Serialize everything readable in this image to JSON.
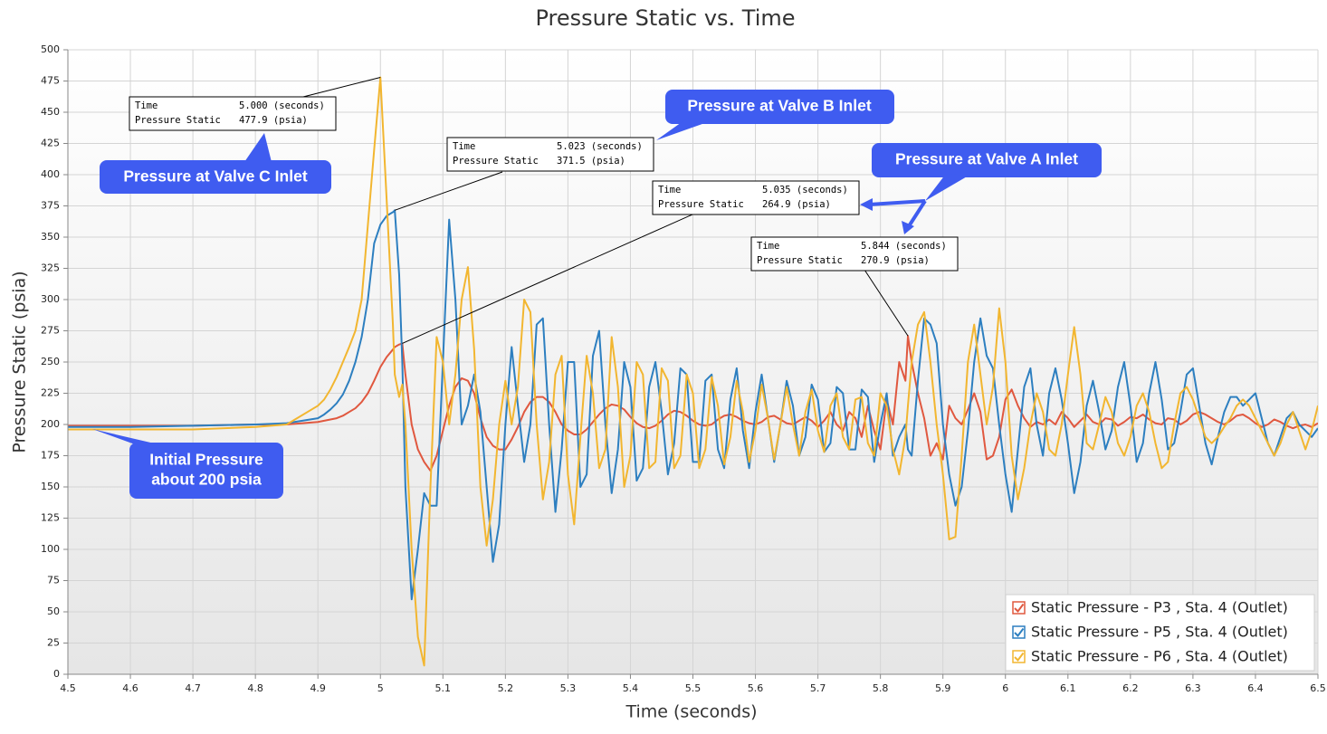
{
  "chart_data": {
    "type": "line",
    "title": "Pressure Static vs. Time",
    "x_label": "Time (seconds)",
    "y_label": "Pressure Static (psia)",
    "xlim": [
      4.5,
      6.5
    ],
    "ylim": [
      0,
      500
    ],
    "xticks": [
      4.5,
      4.6,
      4.7,
      4.8,
      4.9,
      5,
      5.1,
      5.2,
      5.3,
      5.4,
      5.5,
      5.6,
      5.7,
      5.8,
      5.9,
      6,
      6.1,
      6.2,
      6.3,
      6.4,
      6.5
    ],
    "yticks": [
      0,
      25,
      50,
      75,
      100,
      125,
      150,
      175,
      200,
      225,
      250,
      275,
      300,
      325,
      350,
      375,
      400,
      425,
      450,
      475,
      500
    ],
    "grid": true,
    "legend": "lower right",
    "x": [
      4.5,
      4.6,
      4.7,
      4.8,
      4.85,
      4.9,
      4.91,
      4.92,
      4.93,
      4.94,
      4.95,
      4.96,
      4.97,
      4.98,
      4.99,
      5,
      5.01,
      5.02,
      5.023,
      5.03,
      5.035,
      5.04,
      5.05,
      5.06,
      5.07,
      5.08,
      5.09,
      5.1,
      5.11,
      5.12,
      5.13,
      5.14,
      5.15,
      5.16,
      5.17,
      5.18,
      5.19,
      5.2,
      5.21,
      5.22,
      5.23,
      5.24,
      5.25,
      5.26,
      5.27,
      5.28,
      5.29,
      5.3,
      5.31,
      5.32,
      5.33,
      5.34,
      5.35,
      5.36,
      5.37,
      5.38,
      5.39,
      5.4,
      5.41,
      5.42,
      5.43,
      5.44,
      5.45,
      5.46,
      5.47,
      5.48,
      5.49,
      5.5,
      5.51,
      5.52,
      5.53,
      5.54,
      5.55,
      5.56,
      5.57,
      5.58,
      5.59,
      5.6,
      5.61,
      5.62,
      5.63,
      5.64,
      5.65,
      5.66,
      5.67,
      5.68,
      5.69,
      5.7,
      5.71,
      5.72,
      5.73,
      5.74,
      5.75,
      5.76,
      5.77,
      5.78,
      5.79,
      5.8,
      5.81,
      5.82,
      5.83,
      5.84,
      5.844,
      5.85,
      5.86,
      5.87,
      5.88,
      5.89,
      5.9,
      5.91,
      5.92,
      5.93,
      5.94,
      5.95,
      5.96,
      5.97,
      5.98,
      5.99,
      6,
      6.01,
      6.02,
      6.03,
      6.04,
      6.05,
      6.06,
      6.07,
      6.08,
      6.09,
      6.1,
      6.11,
      6.12,
      6.13,
      6.14,
      6.15,
      6.16,
      6.17,
      6.18,
      6.19,
      6.2,
      6.21,
      6.22,
      6.23,
      6.24,
      6.25,
      6.26,
      6.27,
      6.28,
      6.29,
      6.3,
      6.31,
      6.32,
      6.33,
      6.34,
      6.35,
      6.36,
      6.37,
      6.38,
      6.39,
      6.4,
      6.41,
      6.42,
      6.43,
      6.44,
      6.45,
      6.46,
      6.47,
      6.48,
      6.49,
      6.5
    ],
    "series": [
      {
        "name": "Static Pressure - P3 , Sta. 4 (Outlet)",
        "color": "#e0583f",
        "values": [
          199,
          199,
          199,
          200,
          200,
          202,
          203,
          204,
          205,
          207,
          210,
          213,
          218,
          225,
          235,
          246,
          254,
          260,
          262,
          264,
          264.9,
          240,
          200,
          180,
          170,
          163,
          175,
          195,
          215,
          230,
          237,
          235,
          225,
          205,
          190,
          183,
          180,
          180,
          188,
          198,
          210,
          218,
          222,
          222,
          218,
          210,
          200,
          195,
          192,
          192,
          196,
          202,
          208,
          213,
          216,
          215,
          212,
          206,
          201,
          198,
          197,
          199,
          203,
          208,
          211,
          210,
          207,
          203,
          200,
          199,
          200,
          204,
          207,
          208,
          206,
          203,
          201,
          200,
          202,
          206,
          207,
          204,
          201,
          200,
          203,
          206,
          203,
          198,
          203,
          210,
          200,
          195,
          210,
          205,
          190,
          215,
          195,
          180,
          220,
          200,
          250,
          235,
          270.9,
          250,
          225,
          205,
          175,
          185,
          172,
          215,
          205,
          200,
          212,
          225,
          210,
          172,
          175,
          190,
          220,
          228,
          215,
          205,
          198,
          202,
          200,
          204,
          200,
          210,
          205,
          198,
          203,
          208,
          202,
          200,
          205,
          204,
          199,
          202,
          206,
          205,
          208,
          204,
          201,
          200,
          205,
          204,
          200,
          203,
          208,
          210,
          208,
          205,
          202,
          200,
          203,
          207,
          208,
          205,
          201,
          198,
          200,
          204,
          202,
          199,
          197,
          199,
          200,
          198,
          201
        ]
      },
      {
        "name": "Static Pressure - P5 , Sta. 4 (Outlet)",
        "color": "#2d7fc0",
        "values": [
          198,
          198,
          199,
          200,
          201,
          205,
          208,
          212,
          217,
          224,
          235,
          250,
          270,
          300,
          345,
          360,
          367,
          370,
          371.5,
          320,
          250,
          150,
          60,
          100,
          145,
          135,
          135,
          250,
          364,
          300,
          200,
          215,
          240,
          210,
          150,
          90,
          120,
          200,
          262,
          215,
          170,
          200,
          280,
          285,
          200,
          130,
          180,
          250,
          250,
          150,
          160,
          255,
          275,
          200,
          145,
          180,
          250,
          230,
          155,
          165,
          230,
          250,
          210,
          160,
          185,
          245,
          240,
          170,
          170,
          235,
          240,
          180,
          165,
          220,
          245,
          195,
          165,
          210,
          240,
          205,
          170,
          200,
          235,
          215,
          175,
          190,
          232,
          220,
          178,
          185,
          230,
          225,
          180,
          180,
          228,
          222,
          170,
          200,
          225,
          175,
          190,
          200,
          180,
          175,
          235,
          285,
          280,
          265,
          200,
          160,
          135,
          150,
          195,
          250,
          285,
          255,
          245,
          200,
          160,
          130,
          180,
          230,
          245,
          200,
          175,
          225,
          245,
          220,
          185,
          145,
          170,
          215,
          235,
          210,
          180,
          195,
          230,
          250,
          215,
          170,
          185,
          225,
          250,
          220,
          180,
          185,
          210,
          240,
          245,
          215,
          185,
          168,
          190,
          210,
          222,
          222,
          215,
          220,
          225,
          205,
          185,
          175,
          190,
          205,
          210,
          200,
          195,
          190,
          197
        ]
      },
      {
        "name": "Static Pressure - P6 , Sta. 4 (Outlet)",
        "color": "#f2b630",
        "values": [
          196,
          196,
          196,
          198,
          200,
          215,
          220,
          228,
          238,
          250,
          262,
          275,
          300,
          360,
          420,
          477.9,
          380,
          280,
          240,
          222,
          232,
          200,
          100,
          30,
          7,
          150,
          270,
          250,
          200,
          240,
          300,
          326,
          260,
          150,
          103,
          140,
          200,
          235,
          200,
          230,
          300,
          290,
          200,
          140,
          170,
          240,
          255,
          160,
          120,
          190,
          255,
          225,
          165,
          180,
          270,
          230,
          150,
          175,
          250,
          240,
          165,
          170,
          245,
          235,
          165,
          175,
          240,
          225,
          165,
          180,
          238,
          215,
          168,
          190,
          235,
          210,
          170,
          195,
          232,
          205,
          172,
          200,
          230,
          200,
          175,
          210,
          228,
          195,
          178,
          215,
          225,
          190,
          180,
          220,
          222,
          185,
          175,
          225,
          215,
          180,
          160,
          190,
          215,
          250,
          280,
          290,
          250,
          200,
          160,
          108,
          110,
          175,
          250,
          280,
          240,
          200,
          230,
          293,
          250,
          175,
          140,
          165,
          200,
          225,
          210,
          180,
          175,
          200,
          240,
          278,
          240,
          185,
          180,
          200,
          222,
          210,
          185,
          175,
          190,
          215,
          225,
          210,
          185,
          165,
          170,
          200,
          225,
          230,
          220,
          205,
          190,
          185,
          190,
          198,
          205,
          215,
          220,
          215,
          205,
          195,
          185,
          175,
          185,
          200,
          210,
          195,
          180,
          195,
          215
        ]
      }
    ],
    "tooltips": [
      {
        "time_label": "Time",
        "time": {
          "value": 5.0,
          "label": "5.000 (seconds)"
        },
        "value_label": "Pressure Static",
        "value": {
          "value": 477.9,
          "label": "477.9 (psia)"
        }
      },
      {
        "time_label": "Time",
        "time": {
          "value": 5.023,
          "label": "5.023 (seconds)"
        },
        "value_label": "Pressure Static",
        "value": {
          "value": 371.5,
          "label": "371.5 (psia)"
        }
      },
      {
        "time_label": "Time",
        "time": {
          "value": 5.035,
          "label": "5.035 (seconds)"
        },
        "value_label": "Pressure Static",
        "value": {
          "value": 264.9,
          "label": "264.9 (psia)"
        }
      },
      {
        "time_label": "Time",
        "time": {
          "value": 5.844,
          "label": "5.844 (seconds)"
        },
        "value_label": "Pressure Static",
        "value": {
          "value": 270.9,
          "label": "270.9 (psia)"
        }
      }
    ],
    "callouts": [
      {
        "lines": [
          "Pressure at Valve C Inlet"
        ]
      },
      {
        "lines": [
          "Pressure at Valve B Inlet"
        ]
      },
      {
        "lines": [
          "Pressure at Valve A Inlet"
        ]
      },
      {
        "lines": [
          "Initial Pressure",
          "about 200 psia"
        ]
      }
    ]
  }
}
